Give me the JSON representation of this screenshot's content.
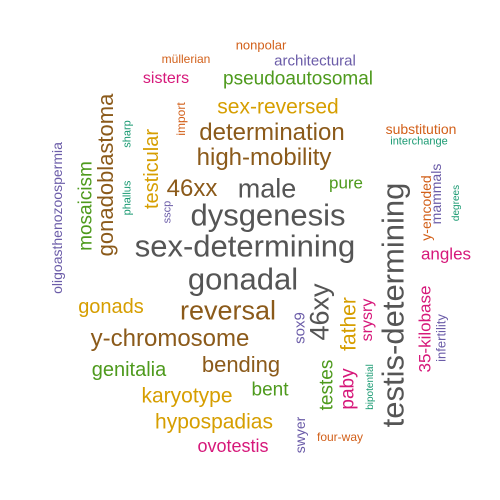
{
  "palette": {
    "gray": "#555555",
    "brown": "#8B5A1A",
    "gold": "#D69E00",
    "green": "#4E9A1D",
    "magenta": "#D6187A",
    "purple": "#6B5CA8",
    "orange": "#D2601A",
    "teal": "#1A9A72"
  },
  "words": {
    "sex_determining": "sex-determining",
    "gonadal": "gonadal",
    "dysgenesis": "dysgenesis",
    "testis_determining": "testis-determining",
    "male": "male",
    "xy46": "46xy",
    "reversal": "reversal",
    "high_mobility": "high-mobility",
    "y_chromosome": "y-chromosome",
    "determination": "determination",
    "xx46": "46xx",
    "gonadoblastoma": "gonadoblastoma",
    "sex_reversed": "sex-reversed",
    "bending": "bending",
    "hypospadias": "hypospadias",
    "karyotype": "karyotype",
    "father": "father",
    "testicular": "testicular",
    "gonads": "gonads",
    "genitalia": "genitalia",
    "mosaicism": "mosaicism",
    "pseudoautosomal": "pseudoautosomal",
    "testes": "testes",
    "paby": "paby",
    "angles": "angles",
    "bent": "bent",
    "ovotestis": "ovotestis",
    "kilobase35": "35-kilobase",
    "pure": "pure",
    "srysry": "srysry",
    "sox9": "sox9",
    "sisters": "sisters",
    "architectural": "architectural",
    "y_encoded": "y-encoded",
    "substitution": "substitution",
    "mammals": "mammals",
    "swyer": "swyer",
    "oligoasthenozoospermia": "oligoasthenozoospermia",
    "infertility": "infertility",
    "nonpolar": "nonpolar",
    "mullerian": "müllerian",
    "import": "import",
    "sharp": "sharp",
    "four_way": "four-way",
    "phallus": "phallus",
    "sscp": "sscp",
    "interchange": "interchange",
    "bipotential": "bipotential",
    "degrees": "degrees"
  }
}
